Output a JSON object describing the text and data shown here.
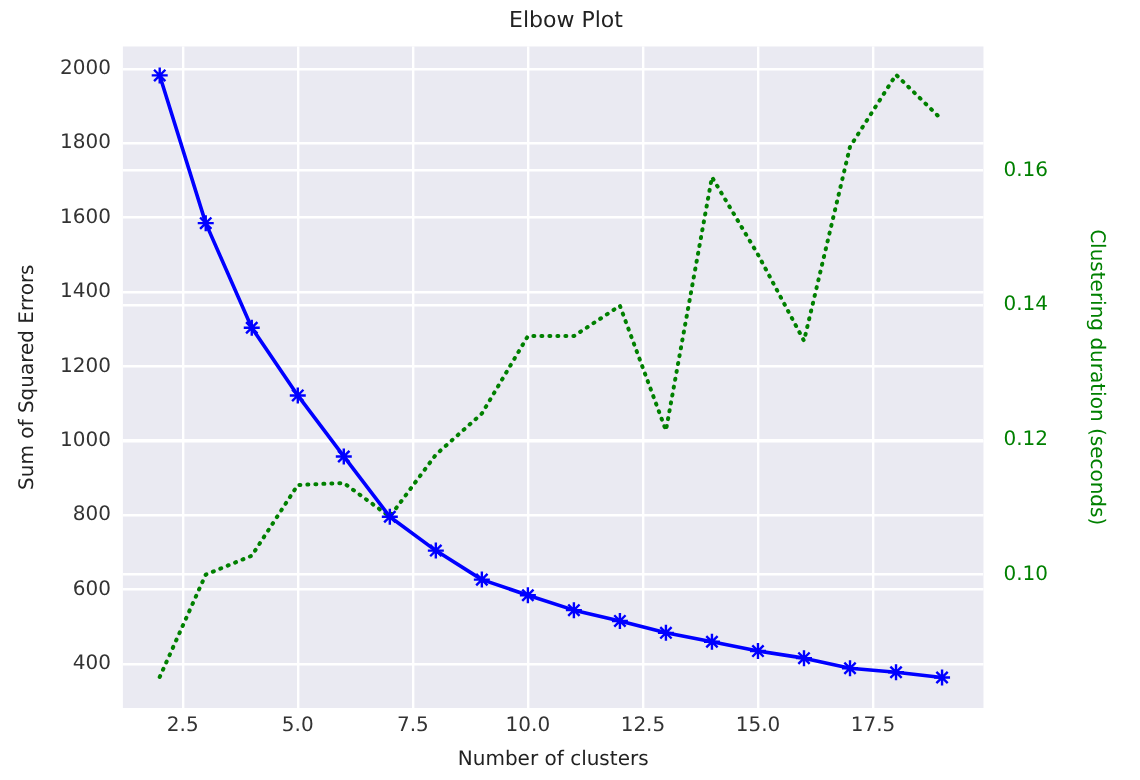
{
  "chart_data": {
    "type": "line",
    "title": "Elbow Plot",
    "xlabel": "Number of clusters",
    "ylabel": "Sum of Squared Errors",
    "y2label": "Clustering duration (seconds)",
    "x": [
      2,
      3,
      4,
      5,
      6,
      7,
      8,
      9,
      10,
      11,
      12,
      13,
      14,
      15,
      16,
      17,
      18,
      19
    ],
    "series": [
      {
        "color": "#0000ff",
        "marker": "cross",
        "line_style": "solid",
        "values": [
          1982,
          1585,
          1304,
          1122,
          958,
          796,
          705,
          627,
          585,
          545,
          516,
          484,
          460,
          435,
          416,
          389,
          378,
          364
        ]
      },
      {
        "color": "#008000",
        "marker": "none",
        "line_style": "dotted",
        "axis": "y2",
        "values": [
          0.0848,
          0.1,
          0.1028,
          0.1133,
          0.1136,
          0.1086,
          0.1178,
          0.1239,
          0.1354,
          0.1354,
          0.1399,
          0.1214,
          0.159,
          0.1475,
          0.1347,
          0.1635,
          0.1742,
          0.1675
        ]
      }
    ],
    "xlim": [
      1.2,
      19.9
    ],
    "xticks": [
      {
        "value": 2.5,
        "label": "2.5"
      },
      {
        "value": 5,
        "label": "5.0"
      },
      {
        "value": 7.5,
        "label": "7.5"
      },
      {
        "value": 10,
        "label": "10.0"
      },
      {
        "value": 12.5,
        "label": "12.5"
      },
      {
        "value": 15,
        "label": "15.0"
      },
      {
        "value": 17.5,
        "label": "17.5"
      }
    ],
    "ylim": [
      282,
      2060
    ],
    "yticks": [
      400,
      600,
      800,
      1000,
      1200,
      1400,
      1600,
      1800,
      2000
    ],
    "y2lim": [
      0.0802,
      0.1784
    ],
    "y2ticks": [
      {
        "value": 0.1,
        "label": "0.10"
      },
      {
        "value": 0.12,
        "label": "0.12"
      },
      {
        "value": 0.14,
        "label": "0.14"
      },
      {
        "value": 0.16,
        "label": "0.16"
      }
    ],
    "grid": true,
    "legend": false
  }
}
